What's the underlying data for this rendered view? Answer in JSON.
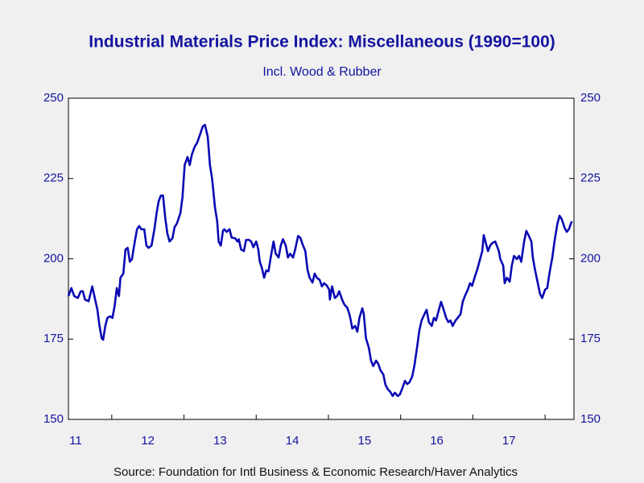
{
  "chart_data": {
    "type": "line",
    "title": "Industrial Materials Price Index: Miscellaneous (1990=100)",
    "subtitle": "Incl. Wood & Rubber",
    "source": "Source:  Foundation for Intl Business & Economic Research/Haver Analytics",
    "xlim": [
      2011.4,
      2018.4
    ],
    "xticks": [
      {
        "value": 2011,
        "label": "11"
      },
      {
        "value": 2012,
        "label": "12"
      },
      {
        "value": 2013,
        "label": "13"
      },
      {
        "value": 2014,
        "label": "14"
      },
      {
        "value": 2015,
        "label": "15"
      },
      {
        "value": 2016,
        "label": "16"
      },
      {
        "value": 2017,
        "label": "17"
      }
    ],
    "ylim": [
      150,
      250
    ],
    "yticks": [
      150,
      175,
      200,
      225,
      250
    ],
    "y2lim": [
      150,
      250
    ],
    "y2ticks": [
      150,
      175,
      200,
      225,
      250
    ],
    "x": [
      2011.4,
      2011.44,
      2011.48,
      2011.53,
      2011.57,
      2011.6,
      2011.63,
      2011.68,
      2011.73,
      2011.77,
      2011.8,
      2011.83,
      2011.86,
      2011.88,
      2011.91,
      2011.94,
      2011.98,
      2012.01,
      2012.04,
      2012.07,
      2012.1,
      2012.12,
      2012.16,
      2012.19,
      2012.22,
      2012.25,
      2012.28,
      2012.31,
      2012.35,
      2012.38,
      2012.41,
      2012.45,
      2012.48,
      2012.51,
      2012.55,
      2012.59,
      2012.62,
      2012.65,
      2012.68,
      2012.71,
      2012.74,
      2012.77,
      2012.8,
      2012.84,
      2012.87,
      2012.9,
      2012.95,
      2012.98,
      2013.01,
      2013.05,
      2013.08,
      2013.11,
      2013.15,
      2013.18,
      2013.23,
      2013.26,
      2013.29,
      2013.33,
      2013.36,
      2013.39,
      2013.43,
      2013.46,
      2013.48,
      2013.51,
      2013.54,
      2013.56,
      2013.59,
      2013.63,
      2013.66,
      2013.71,
      2013.74,
      2013.76,
      2013.79,
      2013.83,
      2013.86,
      2013.9,
      2013.93,
      2013.96,
      2014.0,
      2014.03,
      2014.05,
      2014.08,
      2014.11,
      2014.14,
      2014.17,
      2014.21,
      2014.24,
      2014.27,
      2014.31,
      2014.34,
      2014.37,
      2014.41,
      2014.44,
      2014.47,
      2014.51,
      2014.54,
      2014.58,
      2014.61,
      2014.64,
      2014.68,
      2014.71,
      2014.74,
      2014.78,
      2014.81,
      2014.84,
      2014.88,
      2014.91,
      2014.94,
      2014.98,
      2015.01,
      2015.02,
      2015.05,
      2015.09,
      2015.12,
      2015.15,
      2015.19,
      2015.22,
      2015.26,
      2015.29,
      2015.31,
      2015.33,
      2015.37,
      2015.4,
      2015.43,
      2015.47,
      2015.49,
      2015.52,
      2015.56,
      2015.59,
      2015.62,
      2015.66,
      2015.69,
      2015.72,
      2015.76,
      2015.79,
      2015.82,
      2015.86,
      2015.89,
      2015.92,
      2015.96,
      2015.99,
      2016.02,
      2016.06,
      2016.09,
      2016.12,
      2016.16,
      2016.19,
      2016.23,
      2016.26,
      2016.29,
      2016.33,
      2016.36,
      2016.39,
      2016.43,
      2016.46,
      2016.49,
      2016.53,
      2016.56,
      2016.59,
      2016.63,
      2016.66,
      2016.69,
      2016.72,
      2016.76,
      2016.79,
      2016.83,
      2016.86,
      2016.89,
      2016.93,
      2016.96,
      2016.99,
      2017.03,
      2017.06,
      2017.09,
      2017.13,
      2017.15,
      2017.18,
      2017.21,
      2017.24,
      2017.27,
      2017.31,
      2017.34,
      2017.36,
      2017.38,
      2017.42,
      2017.44,
      2017.47,
      2017.51,
      2017.54,
      2017.57,
      2017.61,
      2017.64,
      2017.67,
      2017.71,
      2017.74,
      2017.77,
      2017.81,
      2017.83,
      2017.86,
      2017.9,
      2017.93,
      2017.96,
      2018.0,
      2018.03,
      2018.06,
      2018.1,
      2018.13,
      2018.17,
      2018.2,
      2018.23,
      2018.27,
      2018.3,
      2018.33,
      2018.37
    ],
    "series": [
      {
        "name": "Miscellaneous",
        "color": "#0a0ab4",
        "values": [
          188.4,
          190.9,
          188.4,
          187.8,
          189.9,
          189.9,
          187.3,
          186.8,
          191.4,
          187.3,
          184.3,
          179.1,
          175.3,
          174.8,
          179.1,
          181.6,
          182.1,
          181.6,
          185.3,
          190.9,
          188.4,
          194.1,
          195.4,
          202.9,
          203.4,
          199.1,
          199.9,
          204.1,
          209.2,
          210.2,
          209.2,
          209.2,
          204.1,
          203.4,
          204.1,
          209.2,
          214.2,
          217.9,
          219.7,
          219.7,
          212.9,
          207.9,
          205.4,
          206.4,
          209.9,
          210.9,
          214.2,
          219.2,
          229.2,
          231.7,
          229.2,
          232.5,
          235.0,
          236.0,
          239.2,
          241.2,
          241.7,
          238.0,
          229.2,
          224.9,
          215.9,
          211.7,
          205.4,
          204.1,
          208.7,
          209.2,
          208.4,
          209.2,
          206.6,
          206.4,
          205.4,
          206.1,
          202.9,
          202.4,
          205.9,
          205.9,
          205.4,
          203.6,
          205.4,
          202.9,
          199.1,
          197.1,
          194.1,
          196.4,
          196.1,
          201.6,
          205.4,
          201.6,
          200.4,
          204.1,
          206.1,
          204.1,
          200.4,
          201.6,
          200.4,
          202.9,
          207.1,
          206.6,
          204.6,
          202.4,
          196.6,
          194.1,
          192.6,
          195.4,
          194.1,
          193.4,
          191.4,
          192.4,
          191.6,
          190.4,
          187.3,
          191.4,
          187.8,
          188.4,
          189.9,
          187.3,
          185.8,
          184.8,
          182.8,
          180.8,
          178.3,
          179.1,
          177.3,
          181.6,
          184.6,
          182.8,
          175.3,
          172.3,
          168.3,
          166.6,
          168.3,
          167.3,
          165.3,
          164.0,
          160.8,
          159.5,
          158.5,
          157.3,
          158.3,
          157.3,
          157.8,
          159.5,
          162.0,
          161.0,
          161.5,
          163.3,
          166.6,
          172.8,
          177.8,
          180.8,
          182.8,
          184.1,
          180.3,
          179.1,
          181.6,
          180.8,
          184.1,
          186.6,
          184.6,
          181.6,
          180.3,
          180.8,
          179.1,
          180.8,
          181.6,
          182.8,
          186.6,
          188.4,
          190.4,
          192.4,
          191.6,
          194.6,
          196.6,
          199.1,
          202.4,
          207.4,
          204.9,
          202.4,
          204.1,
          204.9,
          205.4,
          203.6,
          202.4,
          199.9,
          197.9,
          192.4,
          194.1,
          192.9,
          197.9,
          200.9,
          199.9,
          200.9,
          199.1,
          205.4,
          208.7,
          207.4,
          205.4,
          200.4,
          196.6,
          192.4,
          189.1,
          187.8,
          190.4,
          190.9,
          195.4,
          200.4,
          205.4,
          210.9,
          213.4,
          212.4,
          209.7,
          208.4,
          209.2,
          211.7
        ]
      }
    ]
  }
}
